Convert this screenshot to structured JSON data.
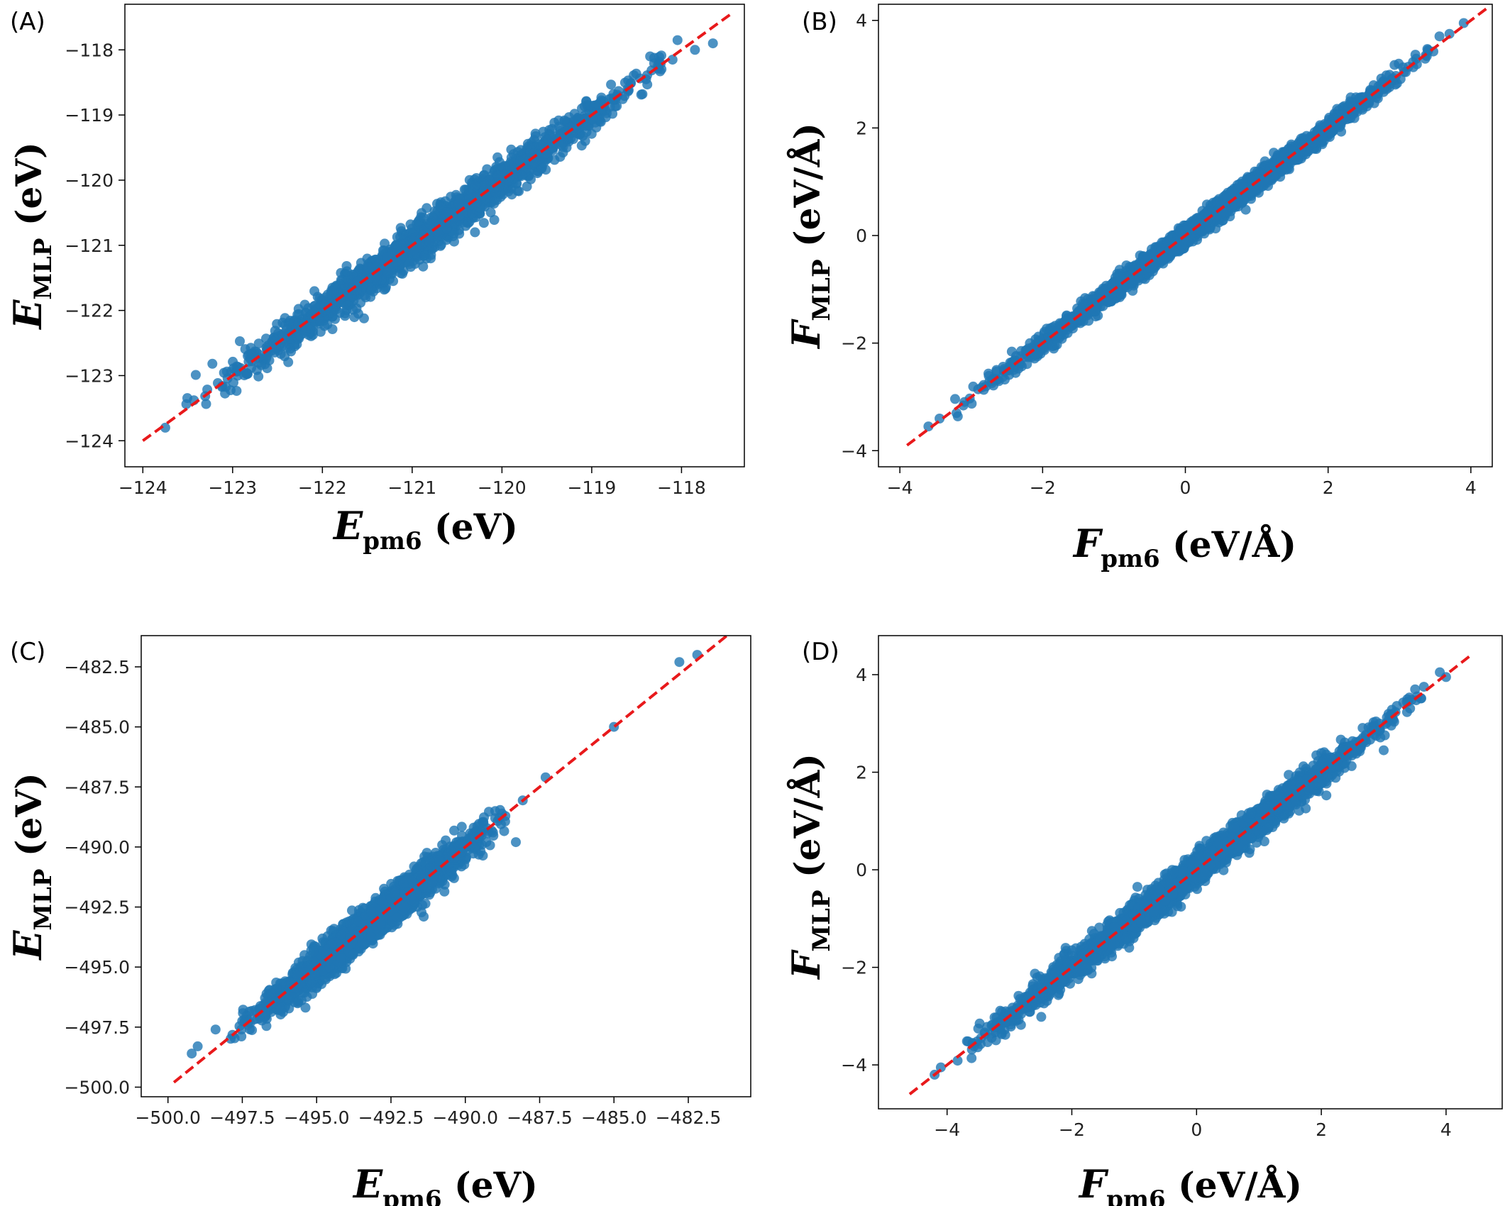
{
  "chart_data": [
    {
      "type": "scatter",
      "panel_label": "(A)",
      "xlabel": {
        "symbol": "E",
        "sub": "pm6",
        "unit": "(eV)"
      },
      "ylabel": {
        "symbol": "E",
        "sub": "MLP",
        "unit": "(eV)"
      },
      "xlim": [
        -124.2,
        -117.3
      ],
      "ylim": [
        -124.4,
        -117.3
      ],
      "xticks": [
        -124,
        -123,
        -122,
        -121,
        -120,
        -119,
        -118
      ],
      "yticks": [
        -124,
        -123,
        -122,
        -121,
        -120,
        -119,
        -118
      ],
      "xtick_labels": [
        "−124",
        "−123",
        "−122",
        "−121",
        "−120",
        "−119",
        "−118"
      ],
      "ytick_labels": [
        "−124",
        "−123",
        "−122",
        "−121",
        "−120",
        "−119",
        "−118"
      ],
      "series": [
        {
          "kind": "points",
          "color": "#1f77b4",
          "n_points": 1800,
          "x_range": [
            -123.8,
            -117.7
          ],
          "spread": 0.14,
          "outliers": [
            [
              -123.75,
              -123.8
            ],
            [
              -118.35,
              -118.1
            ],
            [
              -118.1,
              -118.15
            ],
            [
              -117.85,
              -118.0
            ],
            [
              -117.65,
              -117.9
            ],
            [
              -118.6,
              -118.6
            ],
            [
              -121.6,
              -122.05
            ],
            [
              -120.3,
              -120.8
            ]
          ]
        },
        {
          "kind": "line",
          "label": "y = x",
          "color": "#e8191b",
          "style": "dashed",
          "x": [
            -124.0,
            -117.45
          ],
          "y": [
            -124.0,
            -117.45
          ]
        }
      ],
      "grid": false
    },
    {
      "type": "scatter",
      "panel_label": "(B)",
      "xlabel": {
        "symbol": "F",
        "sub": "pm6",
        "unit": "(eV/Å)"
      },
      "ylabel": {
        "symbol": "F",
        "sub": "MLP",
        "unit": "(eV/Å)"
      },
      "xlim": [
        -4.3,
        4.3
      ],
      "ylim": [
        -4.3,
        4.3
      ],
      "xticks": [
        -4,
        -2,
        0,
        2,
        4
      ],
      "yticks": [
        -4,
        -2,
        0,
        2,
        4
      ],
      "xtick_labels": [
        "−4",
        "−2",
        "0",
        "2",
        "4"
      ],
      "ytick_labels": [
        "−4",
        "−2",
        "0",
        "2",
        "4"
      ],
      "series": [
        {
          "kind": "points",
          "color": "#1f77b4",
          "n_points": 2600,
          "x_range": [
            -3.6,
            3.9
          ],
          "spread": 0.09,
          "outliers": [
            [
              -3.6,
              -3.55
            ],
            [
              3.7,
              3.75
            ],
            [
              3.9,
              3.95
            ],
            [
              3.4,
              3.45
            ]
          ]
        },
        {
          "kind": "line",
          "label": "y = x",
          "color": "#e8191b",
          "style": "dashed",
          "x": [
            -3.9,
            4.25
          ],
          "y": [
            -3.9,
            4.25
          ]
        }
      ],
      "grid": false
    },
    {
      "type": "scatter",
      "panel_label": "(C)",
      "xlabel": {
        "symbol": "E",
        "sub": "pm6",
        "unit": "(eV)"
      },
      "ylabel": {
        "symbol": "E",
        "sub": "MLP",
        "unit": "(eV)"
      },
      "xlim": [
        -500.9,
        -480.4
      ],
      "ylim": [
        -500.4,
        -481.2
      ],
      "xticks": [
        -500.0,
        -497.5,
        -495.0,
        -492.5,
        -490.0,
        -487.5,
        -485.0,
        -482.5
      ],
      "yticks": [
        -500.0,
        -497.5,
        -495.0,
        -492.5,
        -490.0,
        -487.5,
        -485.0,
        -482.5
      ],
      "xtick_labels": [
        "−500.0",
        "−497.5",
        "−495.0",
        "−492.5",
        "−490.0",
        "−487.5",
        "−485.0",
        "−482.5"
      ],
      "ytick_labels": [
        "−500.0",
        "−497.5",
        "−495.0",
        "−492.5",
        "−490.0",
        "−487.5",
        "−485.0",
        "−482.5"
      ],
      "series": [
        {
          "kind": "points",
          "color": "#1f77b4",
          "n_points": 2200,
          "x_range": [
            -498.5,
            -488.0
          ],
          "spread": 0.35,
          "outliers": [
            [
              -499.2,
              -498.6
            ],
            [
              -499.0,
              -498.3
            ],
            [
              -498.4,
              -497.6
            ],
            [
              -497.3,
              -497.3
            ],
            [
              -487.3,
              -487.1
            ],
            [
              -485.0,
              -485.0
            ],
            [
              -482.8,
              -482.3
            ],
            [
              -482.2,
              -482.0
            ],
            [
              -491.4,
              -492.9
            ],
            [
              -488.3,
              -489.8
            ]
          ]
        },
        {
          "kind": "line",
          "label": "y = x",
          "color": "#e8191b",
          "style": "dashed",
          "x": [
            -499.8,
            -481.2
          ],
          "y": [
            -499.8,
            -481.2
          ]
        }
      ],
      "grid": false
    },
    {
      "type": "scatter",
      "panel_label": "(D)",
      "xlabel": {
        "symbol": "F",
        "sub": "pm6",
        "unit": "(eV/Å)"
      },
      "ylabel": {
        "symbol": "F",
        "sub": "MLP",
        "unit": "(eV/Å)"
      },
      "xlim": [
        -5.1,
        4.9
      ],
      "ylim": [
        -4.9,
        4.8
      ],
      "xticks": [
        -4,
        -2,
        0,
        2,
        4
      ],
      "yticks": [
        -4,
        -2,
        0,
        2,
        4
      ],
      "xtick_labels": [
        "−4",
        "−2",
        "0",
        "2",
        "4"
      ],
      "ytick_labels": [
        "−4",
        "−2",
        "0",
        "2",
        "4"
      ],
      "series": [
        {
          "kind": "points",
          "color": "#1f77b4",
          "n_points": 3200,
          "x_range": [
            -4.2,
            4.0
          ],
          "spread": 0.14,
          "outliers": [
            [
              -4.2,
              -4.2
            ],
            [
              -4.1,
              -4.05
            ],
            [
              4.0,
              3.95
            ],
            [
              3.9,
              4.05
            ],
            [
              3.0,
              2.45
            ],
            [
              -2.1,
              -1.6
            ]
          ]
        },
        {
          "kind": "line",
          "label": "y = x",
          "color": "#e8191b",
          "style": "dashed",
          "x": [
            -4.6,
            4.4
          ],
          "y": [
            -4.6,
            4.4
          ]
        }
      ],
      "grid": false
    }
  ]
}
